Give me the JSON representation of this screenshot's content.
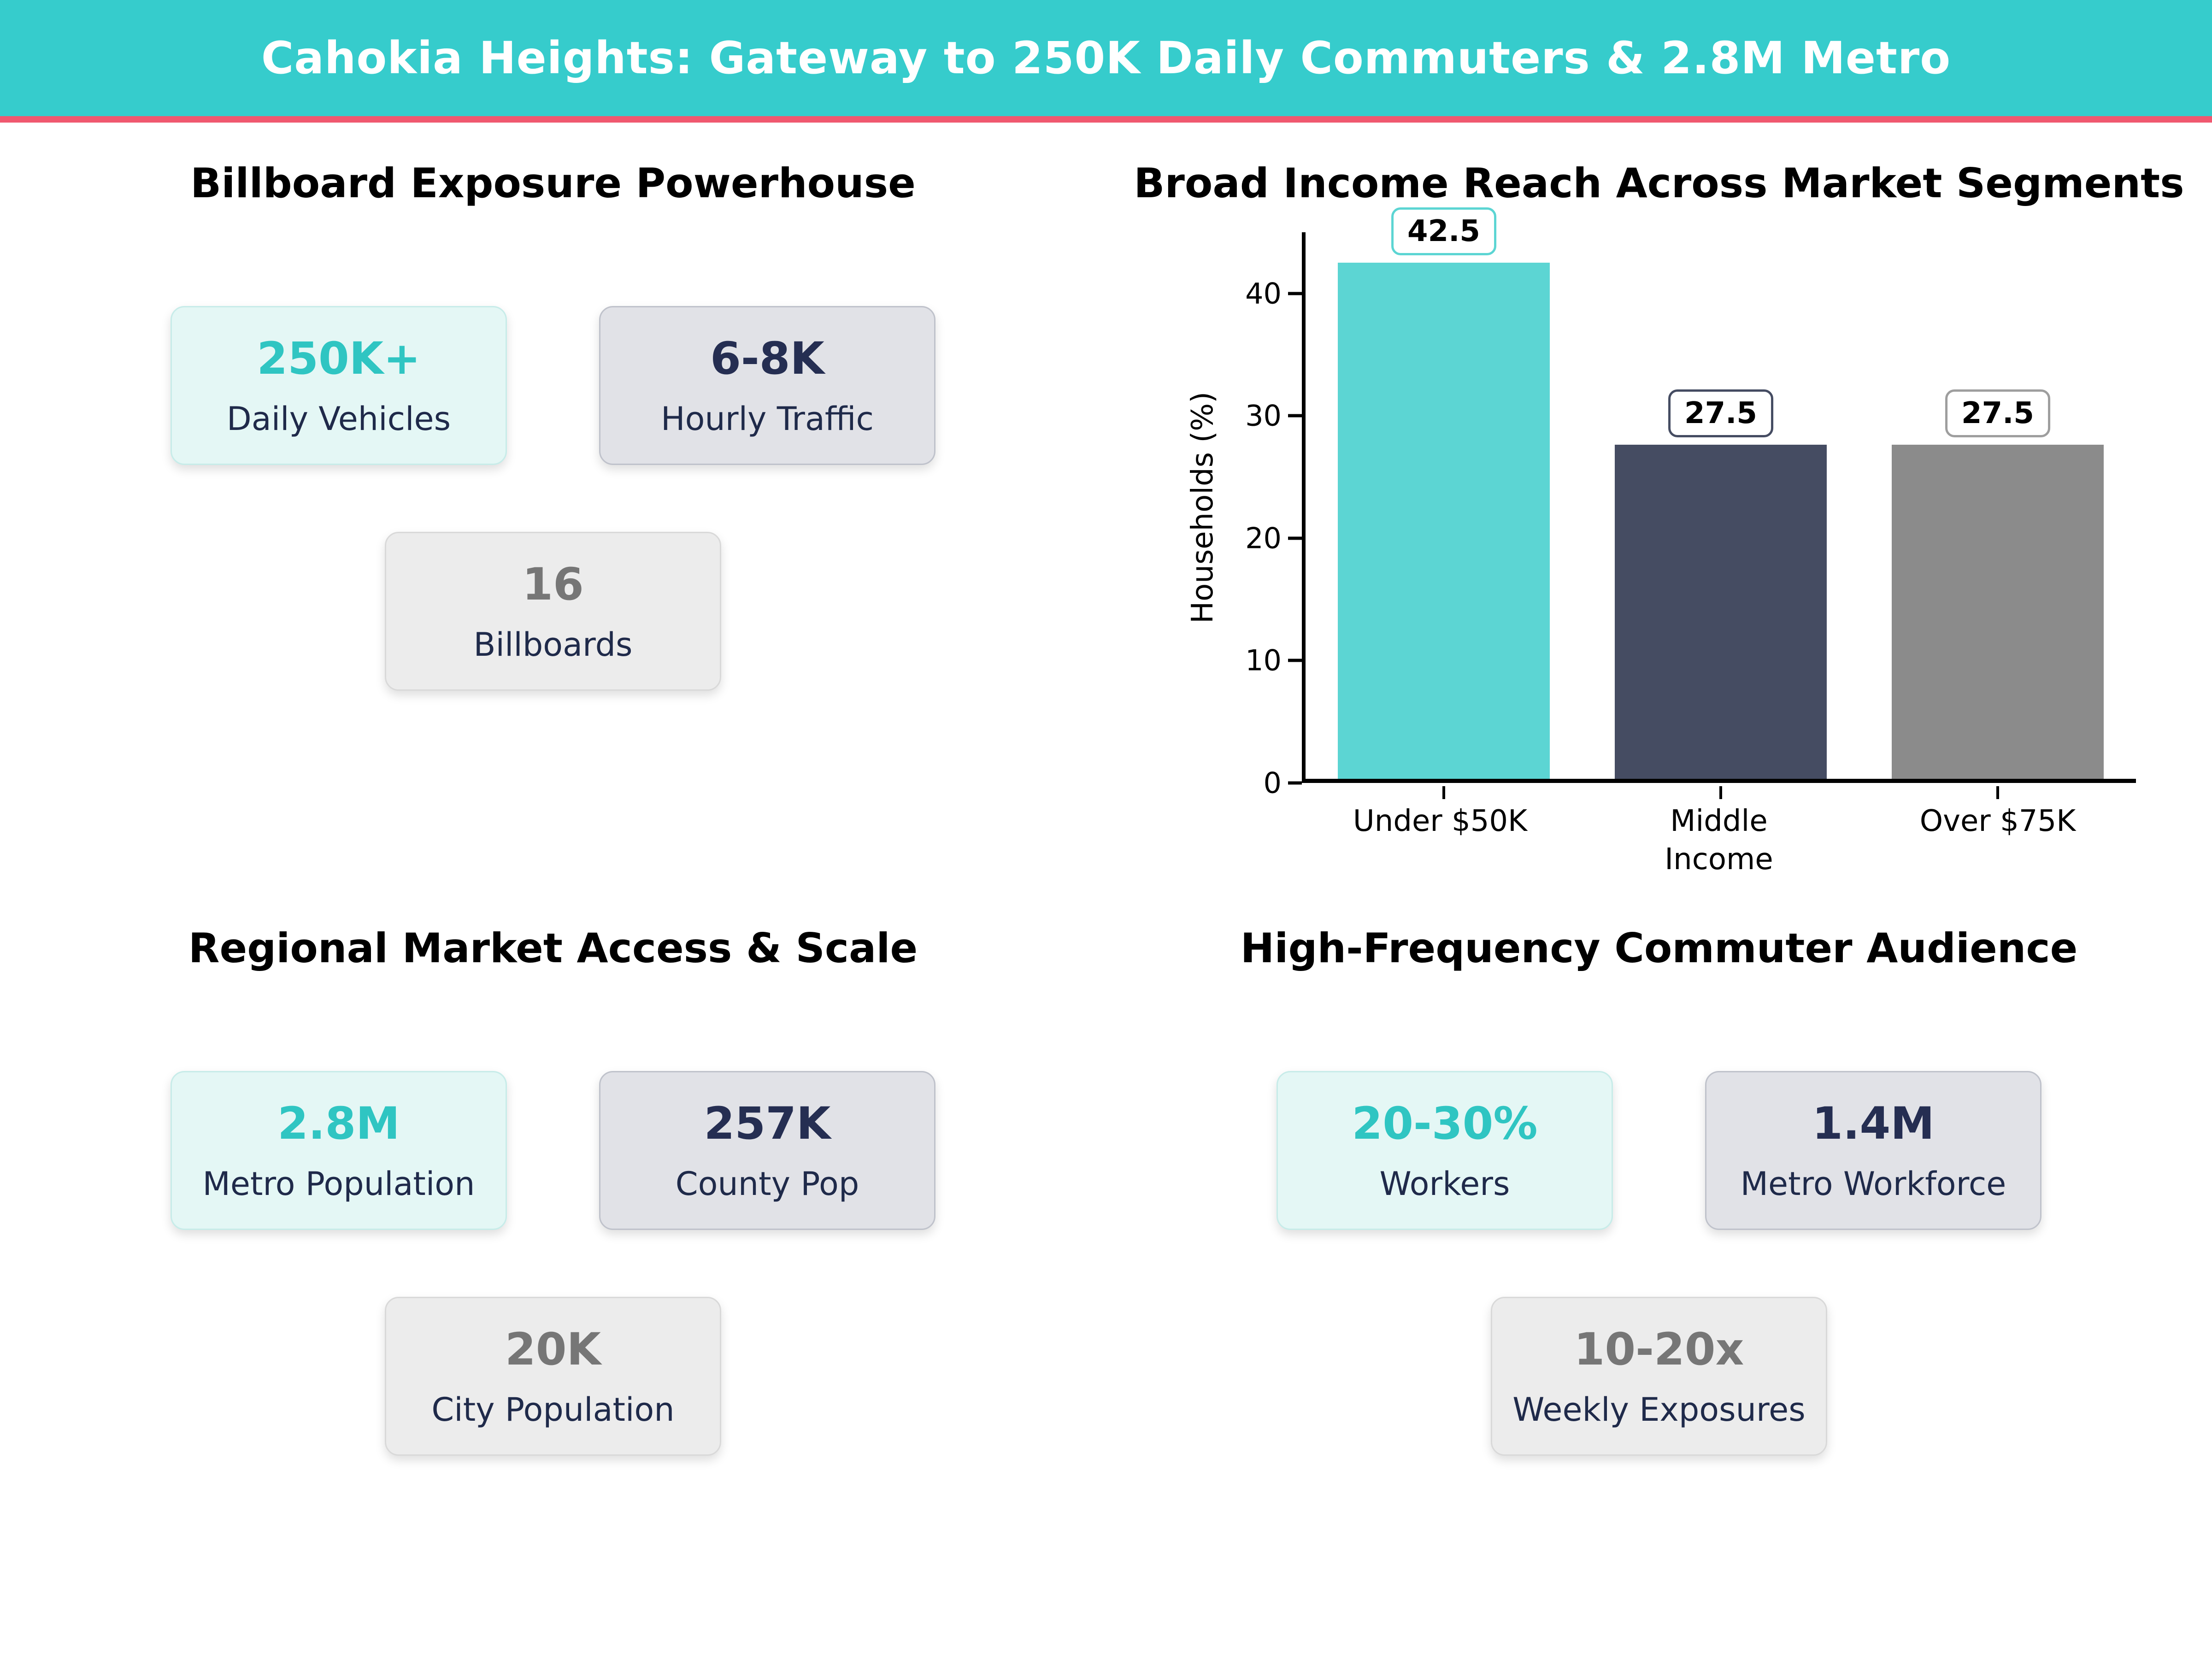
{
  "banner": {
    "title": "Cahokia Heights: Gateway to 250K Daily Commuters & 2.8M Metro",
    "bg_color": "#36cccc",
    "accent_line_color": "#f0586f"
  },
  "panels": [
    {
      "title": "Billboard Exposure Powerhouse",
      "cards": [
        {
          "value": "250K+",
          "label": "Daily Vehicles"
        },
        {
          "value": "6-8K",
          "label": "Hourly Traffic"
        },
        {
          "value": "16",
          "label": "Billboards"
        }
      ]
    },
    {
      "title": "Regional Market Access & Scale",
      "cards": [
        {
          "value": "2.8M",
          "label": "Metro Population"
        },
        {
          "value": "257K",
          "label": "County Pop"
        },
        {
          "value": "20K",
          "label": "City Population"
        }
      ]
    },
    {
      "title": "High-Frequency Commuter Audience",
      "cards": [
        {
          "value": "20-30%",
          "label": "Workers"
        },
        {
          "value": "1.4M",
          "label": "Metro Workforce"
        },
        {
          "value": "10-20x",
          "label": "Weekly Exposures"
        }
      ]
    }
  ],
  "card_colors": {
    "mint_bg": "#e4f7f5",
    "mint_value": "#2fc5c2",
    "slate_bg": "#e1e2e7",
    "slate_value": "#252e52",
    "gray_bg": "#ececec",
    "gray_value": "#767676",
    "label_text": "#1f2a4a"
  },
  "chart_data": {
    "type": "bar",
    "title": "Broad Income Reach Across Market Segments",
    "categories": [
      "Under $50K",
      "Middle\nIncome",
      "Over $75K"
    ],
    "values": [
      42.5,
      27.5,
      27.5
    ],
    "value_labels": [
      "42.5",
      "27.5",
      "27.5"
    ],
    "xlabel": "",
    "ylabel": "Households (%)",
    "ylim": [
      0,
      45
    ],
    "yticks": [
      0,
      10,
      20,
      30,
      40
    ],
    "bar_colors": [
      "#5cd5d3",
      "#454c62",
      "#8b8b8b"
    ],
    "chip_border_colors": [
      "#5cd5d3",
      "#454c62",
      "#9e9e9e"
    ],
    "grid": false,
    "legend": false
  }
}
